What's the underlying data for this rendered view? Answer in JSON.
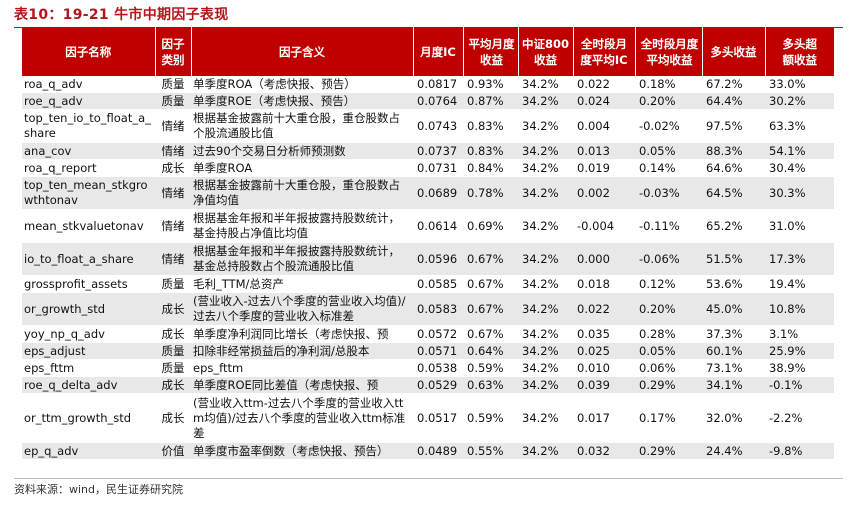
{
  "title": "表10：19-21 牛市中期因子表现",
  "headers": [
    "因子名称",
    "因子类别",
    "因子含义",
    "月度IC",
    "平均月度收益",
    "中证800收益",
    "全时段月度平均IC",
    "全时段月度平均收益",
    "多头收益",
    "多头超额收益"
  ],
  "rows": [
    {
      "name": "roa_q_adv",
      "cat": "质量",
      "desc": "单季度ROA（考虑快报、预告）",
      "ic": "0.0817",
      "ret": "0.93%",
      "csi": "34.2%",
      "allic": "0.022",
      "allret": "0.18%",
      "long": "67.2%",
      "excess": "33.0%"
    },
    {
      "name": "roe_q_adv",
      "cat": "质量",
      "desc": "单季度ROE（考虑快报、预告）",
      "ic": "0.0764",
      "ret": "0.87%",
      "csi": "34.2%",
      "allic": "0.024",
      "allret": "0.20%",
      "long": "64.4%",
      "excess": "30.2%"
    },
    {
      "name": "top_ten_io_to_float_a_share",
      "cat": "情绪",
      "desc": "根据基金披露前十大重仓股，重仓股数占个股流通股比值",
      "ic": "0.0743",
      "ret": "0.83%",
      "csi": "34.2%",
      "allic": "0.004",
      "allret": "-0.02%",
      "long": "97.5%",
      "excess": "63.3%"
    },
    {
      "name": "ana_cov",
      "cat": "情绪",
      "desc": "过去90个交易日分析师预测数",
      "ic": "0.0737",
      "ret": "0.83%",
      "csi": "34.2%",
      "allic": "0.013",
      "allret": "0.05%",
      "long": "88.3%",
      "excess": "54.1%"
    },
    {
      "name": "roa_q_report",
      "cat": "成长",
      "desc": "单季度ROA",
      "ic": "0.0731",
      "ret": "0.84%",
      "csi": "34.2%",
      "allic": "0.019",
      "allret": "0.14%",
      "long": "64.6%",
      "excess": "30.4%"
    },
    {
      "name": "top_ten_mean_stkgrowthtonav",
      "cat": "情绪",
      "desc": "根据基金披露前十大重仓股，重仓股数占净值均值",
      "ic": "0.0689",
      "ret": "0.78%",
      "csi": "34.2%",
      "allic": "0.002",
      "allret": "-0.03%",
      "long": "64.5%",
      "excess": "30.3%"
    },
    {
      "name": "mean_stkvaluetonav",
      "cat": "情绪",
      "desc": "根据基金年报和半年报披露持股数统计，基金持股占净值比均值",
      "ic": "0.0614",
      "ret": "0.69%",
      "csi": "34.2%",
      "allic": "-0.004",
      "allret": "-0.11%",
      "long": "65.2%",
      "excess": "31.0%"
    },
    {
      "name": "io_to_float_a_share",
      "cat": "情绪",
      "desc": "根据基金年报和半年报披露持股数统计，基金总持股数占个股流通股比值",
      "ic": "0.0596",
      "ret": "0.67%",
      "csi": "34.2%",
      "allic": "0.000",
      "allret": "-0.06%",
      "long": "51.5%",
      "excess": "17.3%"
    },
    {
      "name": "grossprofit_assets",
      "cat": "质量",
      "desc": "毛利_TTM/总资产",
      "ic": "0.0585",
      "ret": "0.67%",
      "csi": "34.2%",
      "allic": "0.018",
      "allret": "0.12%",
      "long": "53.6%",
      "excess": "19.4%"
    },
    {
      "name": "or_growth_std",
      "cat": "成长",
      "desc": "(营业收入-过去八个季度的营业收入均值)/过去八个季度的营业收入标准差",
      "ic": "0.0583",
      "ret": "0.67%",
      "csi": "34.2%",
      "allic": "0.022",
      "allret": "0.20%",
      "long": "45.0%",
      "excess": "10.8%"
    },
    {
      "name": "yoy_np_q_adv",
      "cat": "成长",
      "desc": "单季度净利润同比增长（考虑快报、预",
      "ic": "0.0572",
      "ret": "0.67%",
      "csi": "34.2%",
      "allic": "0.035",
      "allret": "0.28%",
      "long": "37.3%",
      "excess": "3.1%"
    },
    {
      "name": "eps_adjust",
      "cat": "质量",
      "desc": "扣除非经常损益后的净利润/总股本",
      "ic": "0.0571",
      "ret": "0.64%",
      "csi": "34.2%",
      "allic": "0.025",
      "allret": "0.05%",
      "long": "60.1%",
      "excess": "25.9%"
    },
    {
      "name": "eps_fttm",
      "cat": "质量",
      "desc": "eps_fttm",
      "ic": "0.0538",
      "ret": "0.59%",
      "csi": "34.2%",
      "allic": "0.010",
      "allret": "0.06%",
      "long": "73.1%",
      "excess": "38.9%"
    },
    {
      "name": "roe_q_delta_adv",
      "cat": "成长",
      "desc": "单季度ROE同比差值（考虑快报、预",
      "ic": "0.0529",
      "ret": "0.63%",
      "csi": "34.2%",
      "allic": "0.039",
      "allret": "0.29%",
      "long": "34.1%",
      "excess": "-0.1%"
    },
    {
      "name": "or_ttm_growth_std",
      "cat": "成长",
      "desc": "(营业收入ttm-过去八个季度的营业收入ttm均值)/过去八个季度的营业收入ttm标准差",
      "ic": "0.0517",
      "ret": "0.59%",
      "csi": "34.2%",
      "allic": "0.017",
      "allret": "0.17%",
      "long": "32.0%",
      "excess": "-2.2%"
    },
    {
      "name": "ep_q_adv",
      "cat": "价值",
      "desc": "单季度市盈率倒数（考虑快报、预告）",
      "ic": "0.0489",
      "ret": "0.55%",
      "csi": "34.2%",
      "allic": "0.032",
      "allret": "0.29%",
      "long": "24.4%",
      "excess": "-9.8%"
    }
  ],
  "source": "资料来源：wind，民生证券研究院"
}
